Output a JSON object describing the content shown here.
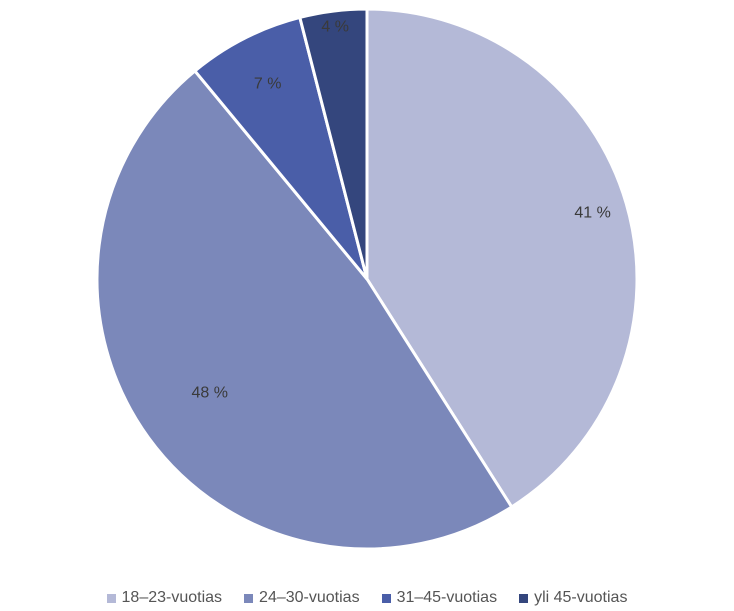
{
  "chart_data": {
    "type": "pie",
    "title": "",
    "categories": [
      "18–23-vuotias",
      "24–30-vuotias",
      "31–45-vuotias",
      "yli 45-vuotias"
    ],
    "values": [
      41,
      48,
      7,
      4
    ],
    "labels": [
      "41 %",
      "48 %",
      "7 %",
      "4 %"
    ],
    "colors": [
      "#b4b9d7",
      "#7b88ba",
      "#4a5ea8",
      "#34467d"
    ],
    "start_angle_deg": 0,
    "direction": "clockwise",
    "legend_position": "bottom"
  }
}
